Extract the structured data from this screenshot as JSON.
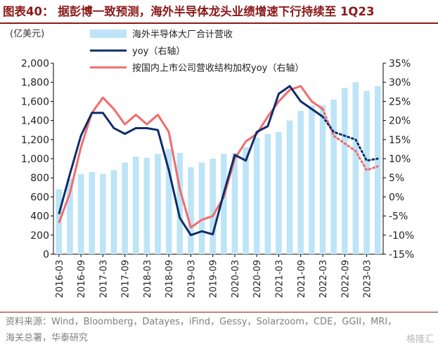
{
  "title": "图表40： 据彭博一致预测，海外半导体龙头业绩增速下行持续至 1Q23",
  "source": "资料来源：Wind，Bloomberg，Datayes，iFind，Gessy，Solarzoom，CDE，GGII，MRI，海关总署，华泰研究",
  "watermark": "格隆汇",
  "colors": {
    "bar": "#bde4f7",
    "yoy": "#0e2d6b",
    "weighted": "#f26b6b",
    "title": "#8b1a1a"
  },
  "chart_data": {
    "type": "bar",
    "left_axis_unit": "(亿美元)",
    "categories": [
      "2016-03",
      "2016-06",
      "2016-09",
      "2016-12",
      "2017-03",
      "2017-06",
      "2017-09",
      "2017-12",
      "2018-03",
      "2018-06",
      "2018-09",
      "2018-12",
      "2019-03",
      "2019-06",
      "2019-09",
      "2019-12",
      "2020-03",
      "2020-06",
      "2020-09",
      "2020-12",
      "2021-03",
      "2021-06",
      "2021-09",
      "2021-12",
      "2022-03",
      "2022-06",
      "2022-09",
      "2022-12",
      "2023-03",
      "2023-06"
    ],
    "xtick_labels": [
      "2016-03",
      "2016-09",
      "2017-03",
      "2017-09",
      "2018-03",
      "2018-09",
      "2019-03",
      "2019-09",
      "2020-03",
      "2020-09",
      "2021-03",
      "2021-09",
      "2022-03",
      "2022-09",
      "2023-03"
    ],
    "yleft": {
      "min": 0,
      "max": 2000,
      "step": 200,
      "ticks": [
        "0",
        "200",
        "400",
        "600",
        "800",
        "1,000",
        "1,200",
        "1,400",
        "1,600",
        "1,800",
        "2,000"
      ]
    },
    "yright": {
      "min": -15,
      "max": 35,
      "step": 5,
      "ticks": [
        "-15%",
        "-10%",
        "-5%",
        "0%",
        "5%",
        "10%",
        "15%",
        "20%",
        "25%",
        "30%",
        "35%"
      ]
    },
    "legend": {
      "placement": "top-center",
      "bar": "海外半导体大厂合计营收",
      "yoy": "yoy（右轴）",
      "weighted": "按国内上市公司营收结构加权yoy（右轴）"
    },
    "series": [
      {
        "name": "海外半导体大厂合计营收",
        "axis": "left",
        "kind": "bar",
        "values": [
          680,
          790,
          840,
          860,
          840,
          880,
          960,
          1020,
          1010,
          1050,
          1100,
          1060,
          910,
          960,
          1000,
          1050,
          1060,
          1120,
          1220,
          1260,
          1280,
          1400,
          1500,
          1560,
          1560,
          1620,
          1740,
          1800,
          1710,
          1760
        ]
      },
      {
        "name": "yoy（右轴）",
        "axis": "right",
        "kind": "line",
        "projected_from": "2022-03",
        "values": [
          -4.5,
          6,
          16,
          22,
          22,
          18,
          16.5,
          18,
          18,
          17.5,
          7,
          -5.5,
          -10,
          -9,
          -9.8,
          1,
          11,
          9.5,
          17,
          18.5,
          27,
          29,
          25,
          23,
          21,
          17,
          16,
          15,
          9.5,
          10
        ]
      },
      {
        "name": "按国内上市公司营收结构加权yoy（右轴）",
        "axis": "right",
        "kind": "line",
        "projected_from": "2022-03",
        "values": [
          -6.8,
          1,
          13,
          22,
          26,
          23,
          19,
          21.5,
          19,
          21.5,
          17,
          2,
          -8,
          -6,
          -5,
          0,
          10,
          14.5,
          16.5,
          21,
          25,
          28,
          29,
          25,
          23,
          16,
          14,
          12,
          7,
          8
        ]
      }
    ]
  }
}
